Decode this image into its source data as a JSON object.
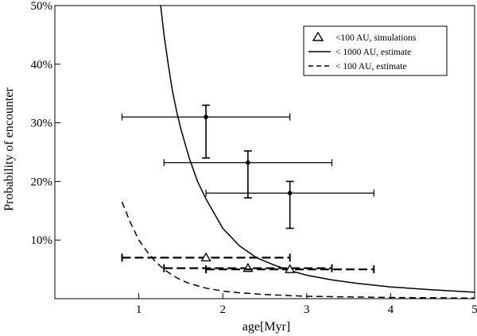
{
  "chart_data": {
    "type": "scatter",
    "title": "",
    "xlabel": "age[Myr]",
    "ylabel": "Probability of  encounter",
    "xlim": [
      0,
      5
    ],
    "ylim": [
      0,
      50
    ],
    "x_ticks": [
      1,
      2,
      3,
      4,
      5
    ],
    "y_ticks": [
      10,
      20,
      30,
      40,
      50
    ],
    "y_tick_labels": [
      "10%",
      "20%",
      "30%",
      "40%",
      "50%"
    ],
    "grid": false,
    "legend_position": "top-right",
    "legend": [
      {
        "label": "<100  AU, simulations",
        "marker": "triangle"
      },
      {
        "label": "< 1000 AU, estimate",
        "line": "solid"
      },
      {
        "label": "< 100 AU, estimate",
        "line": "dashed"
      }
    ],
    "series": [
      {
        "name": "< 1000 AU, estimate",
        "kind": "curve",
        "style": "solid",
        "x": [
          1.26,
          1.3,
          1.35,
          1.4,
          1.45,
          1.5,
          1.6,
          1.7,
          1.8,
          2.0,
          2.2,
          2.4,
          2.6,
          2.8,
          3.0,
          3.3,
          3.6,
          4.0,
          4.5,
          5.0
        ],
        "y": [
          50,
          45,
          40,
          35.5,
          32,
          29,
          24,
          20,
          17,
          12,
          9,
          7,
          5.8,
          4.8,
          4.0,
          3.2,
          2.6,
          2.0,
          1.5,
          1.1
        ]
      },
      {
        "name": "< 100 AU, estimate",
        "kind": "curve",
        "style": "dashed",
        "x": [
          0.8,
          0.9,
          1.0,
          1.1,
          1.2,
          1.3,
          1.4,
          1.5,
          1.6,
          1.8,
          2.0,
          2.2,
          2.5,
          3.0,
          3.5,
          4.0,
          4.5,
          5.0
        ],
        "y": [
          16.5,
          13,
          10,
          8,
          6.3,
          5,
          4,
          3.2,
          2.6,
          1.8,
          1.3,
          1.0,
          0.7,
          0.4,
          0.3,
          0.2,
          0.15,
          0.1
        ]
      },
      {
        "name": "",
        "kind": "points",
        "marker": "dot",
        "points": [
          {
            "x": 1.8,
            "y": 31,
            "xerr": [
              0.8,
              2.8
            ],
            "yerr": [
              24,
              33
            ]
          },
          {
            "x": 2.3,
            "y": 23.2,
            "xerr": [
              1.3,
              3.3
            ],
            "yerr": [
              17.2,
              25.2
            ]
          },
          {
            "x": 2.8,
            "y": 18,
            "xerr": [
              1.8,
              3.8
            ],
            "yerr": [
              12,
              20
            ]
          }
        ]
      },
      {
        "name": "<100  AU, simulations",
        "kind": "points",
        "marker": "triangle",
        "points": [
          {
            "x": 1.8,
            "y": 7,
            "xerr": [
              0.8,
              2.8
            ]
          },
          {
            "x": 2.3,
            "y": 5.2,
            "xerr": [
              1.3,
              3.3
            ]
          },
          {
            "x": 2.8,
            "y": 5.0,
            "xerr": [
              1.8,
              3.8
            ]
          }
        ]
      }
    ]
  }
}
